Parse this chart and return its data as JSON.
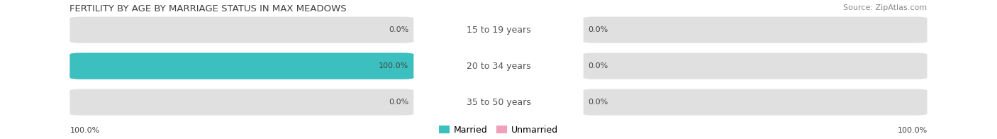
{
  "title": "FERTILITY BY AGE BY MARRIAGE STATUS IN MAX MEADOWS",
  "source": "Source: ZipAtlas.com",
  "rows": [
    {
      "label": "15 to 19 years",
      "married": 0.0,
      "unmarried": 0.0
    },
    {
      "label": "20 to 34 years",
      "married": 100.0,
      "unmarried": 0.0
    },
    {
      "label": "35 to 50 years",
      "married": 0.0,
      "unmarried": 0.0
    }
  ],
  "married_color": "#3bbfbf",
  "unmarried_color": "#f0a0b8",
  "bar_bg_color": "#e0e0e0",
  "title_fontsize": 9.5,
  "source_fontsize": 8,
  "bar_label_fontsize": 9,
  "value_fontsize": 8,
  "legend_fontsize": 9,
  "bottom_left_label": "100.0%",
  "bottom_right_label": "100.0%"
}
